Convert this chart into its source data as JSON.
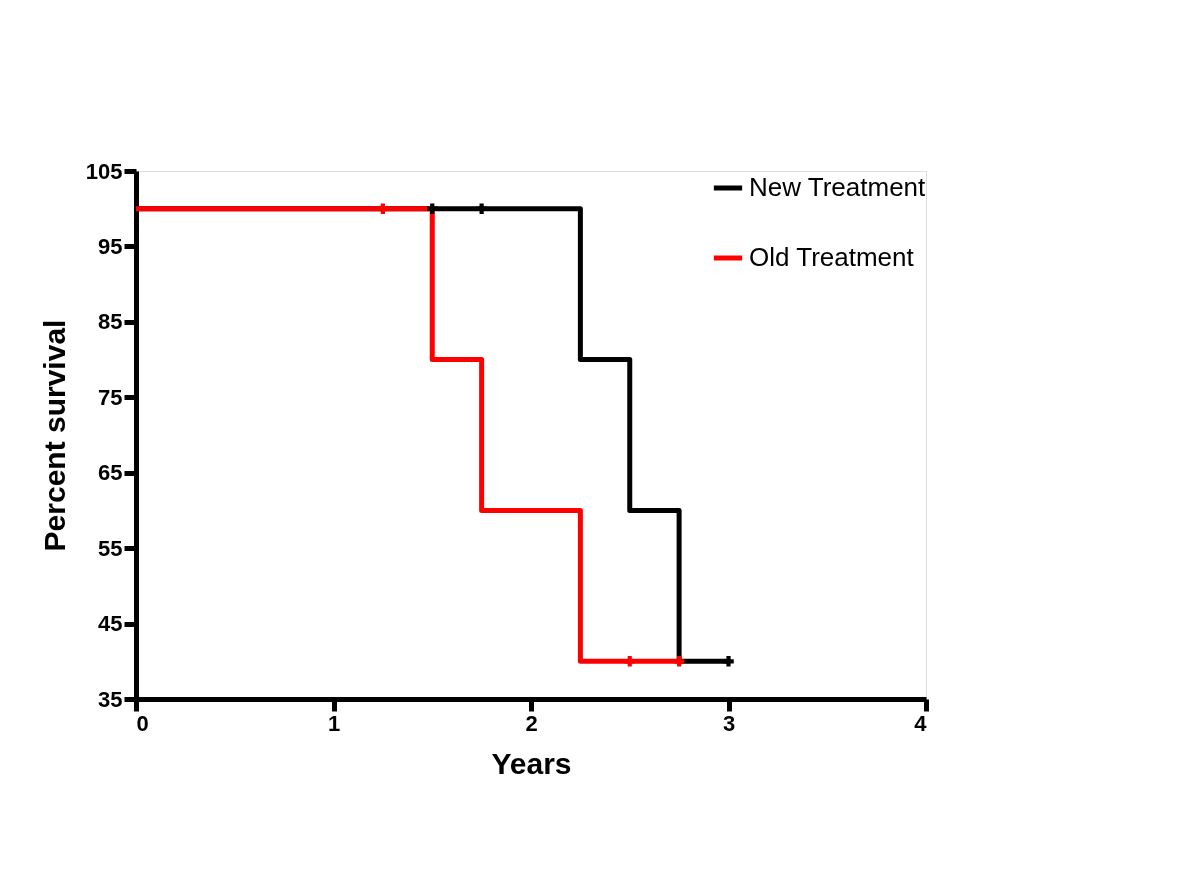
{
  "chart_data": {
    "type": "step",
    "xlabel": "Years",
    "ylabel": "Percent survival",
    "xlim": [
      0,
      4
    ],
    "xticks": [
      0,
      1,
      2,
      3,
      4
    ],
    "ylim": [
      35,
      105
    ],
    "yticks": [
      35,
      45,
      55,
      65,
      75,
      85,
      95,
      105
    ],
    "grid": false,
    "legend": "top right",
    "series": [
      {
        "name": "New Treatment",
        "color": "#000000",
        "x": [
          0,
          2.25,
          2.5,
          2.75,
          3
        ],
        "values": [
          100,
          80,
          60,
          40,
          40
        ]
      },
      {
        "name": "Old Treatment",
        "color": "#ff0000",
        "x": [
          0,
          1.5,
          1.75,
          2.25,
          2.75
        ],
        "values": [
          100,
          80,
          60,
          40,
          40
        ]
      },
      {
        "type": "scatter",
        "marker": "cross",
        "color": "#000000",
        "x": [
          1.5,
          1.75,
          3
        ],
        "values": [
          100,
          100,
          40
        ]
      },
      {
        "type": "scatter",
        "marker": "cross",
        "color": "#ff0000",
        "x": [
          1.25,
          2.5,
          2.75
        ],
        "values": [
          100,
          40,
          40
        ]
      }
    ]
  }
}
